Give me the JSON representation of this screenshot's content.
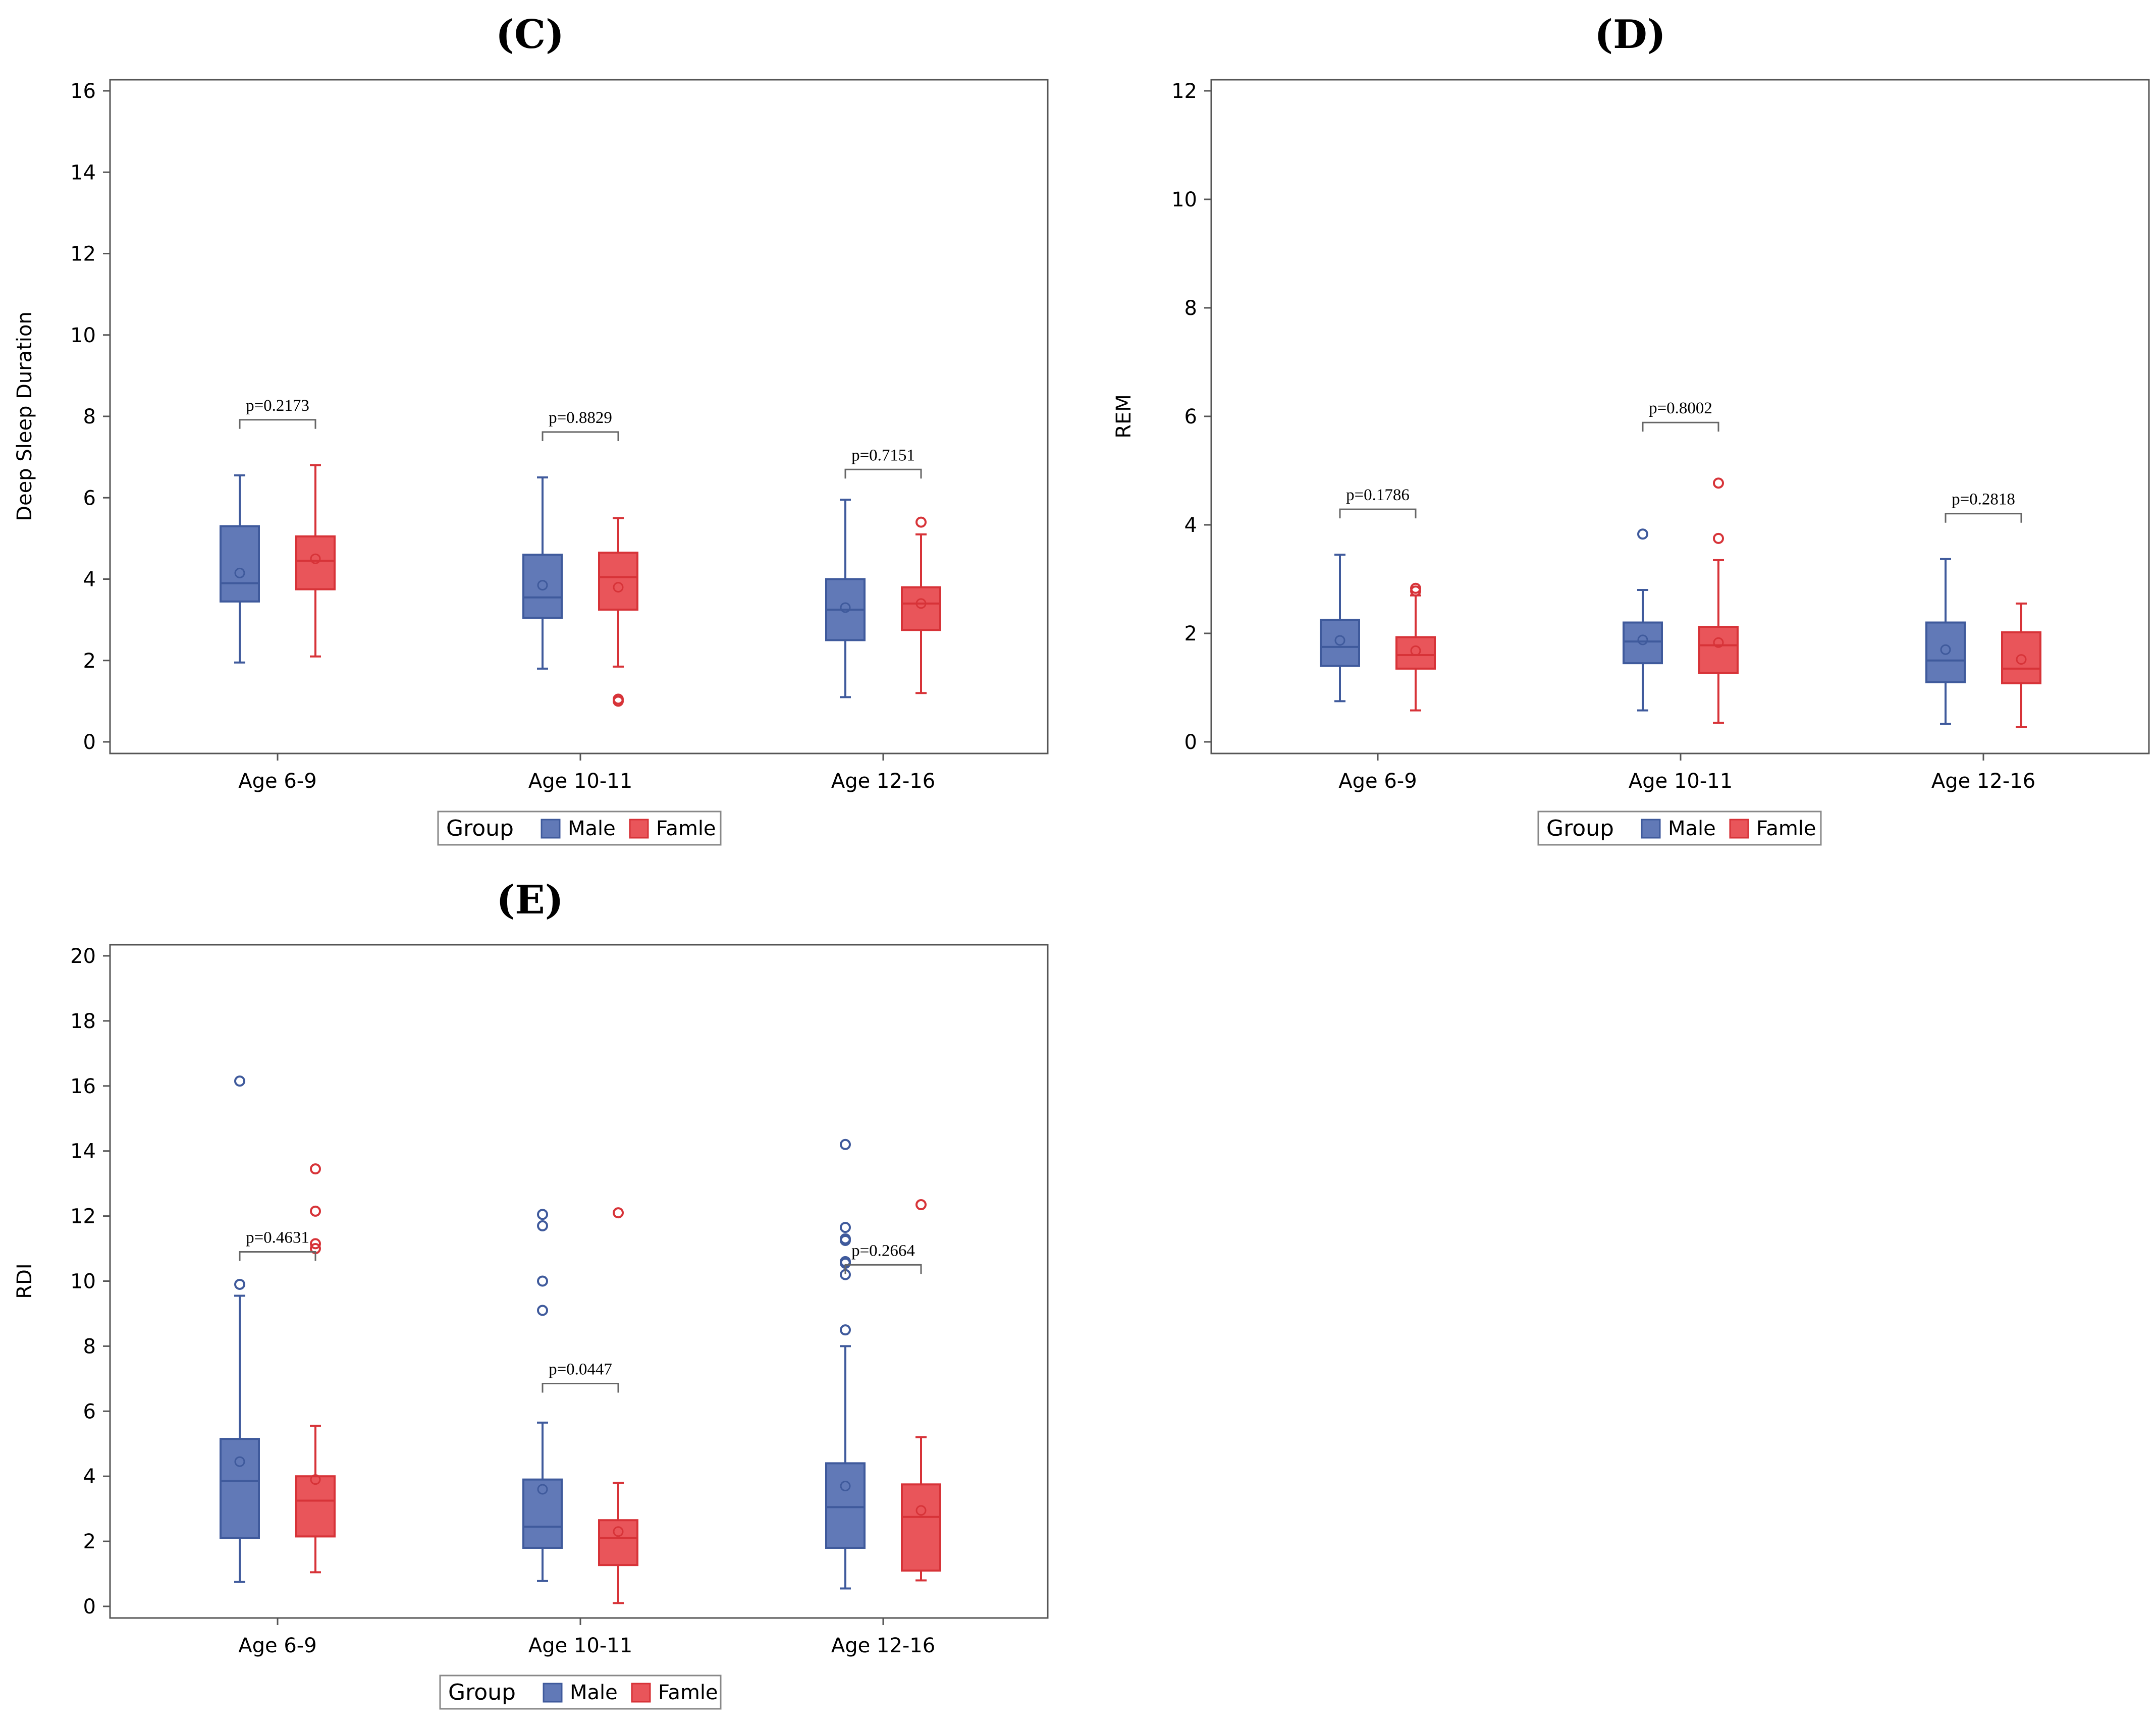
{
  "colors": {
    "male_fill": "#6179b7",
    "male_line": "#3f5a9c",
    "female_fill": "#e9555a",
    "female_line": "#d73338",
    "axis": "#555555",
    "bracket": "#666666"
  },
  "legend": {
    "title": "Group",
    "male": "Male",
    "female": "Famle"
  },
  "chart_data": [
    {
      "panel": "(C)",
      "type": "box",
      "ylabel": "Deep Sleep Duration",
      "ylim": [
        0,
        16
      ],
      "yticks": [
        "0",
        "2",
        "4",
        "6",
        "8",
        "10",
        "12",
        "14",
        "16"
      ],
      "categories": [
        "Age 6-9",
        "Age 10-11",
        "Age 12-16"
      ],
      "groups": [
        {
          "pvalue": "p=0.2173",
          "male": {
            "min": 1.95,
            "q1": 3.45,
            "median": 3.9,
            "q3": 5.3,
            "max": 6.55,
            "mean": 4.15,
            "outliers": []
          },
          "female": {
            "min": 2.1,
            "q1": 3.75,
            "median": 4.45,
            "q3": 5.05,
            "max": 6.8,
            "mean": 4.5,
            "outliers": []
          }
        },
        {
          "pvalue": "p=0.8829",
          "male": {
            "min": 1.8,
            "q1": 3.05,
            "median": 3.55,
            "q3": 4.6,
            "max": 6.5,
            "mean": 3.85,
            "outliers": []
          },
          "female": {
            "min": 1.85,
            "q1": 3.25,
            "median": 4.05,
            "q3": 4.65,
            "max": 5.5,
            "mean": 3.8,
            "outliers": [
              1.0,
              1.05
            ]
          }
        },
        {
          "pvalue": "p=0.7151",
          "male": {
            "min": 1.1,
            "q1": 2.5,
            "median": 3.25,
            "q3": 4.0,
            "max": 5.95,
            "mean": 3.3,
            "outliers": []
          },
          "female": {
            "min": 1.2,
            "q1": 2.75,
            "median": 3.4,
            "q3": 3.8,
            "max": 5.1,
            "mean": 3.4,
            "outliers": [
              5.4
            ]
          }
        }
      ]
    },
    {
      "panel": "(D)",
      "type": "box",
      "ylabel": "REM",
      "ylim": [
        0,
        12
      ],
      "yticks": [
        "0",
        "2",
        "4",
        "6",
        "8",
        "10",
        "12"
      ],
      "categories": [
        "Age 6-9",
        "Age 10-11",
        "Age 12-16"
      ],
      "groups": [
        {
          "pvalue": "p=0.1786",
          "male": {
            "min": 0.75,
            "q1": 1.4,
            "median": 1.75,
            "q3": 2.25,
            "max": 3.45,
            "mean": 1.87,
            "outliers": []
          },
          "female": {
            "min": 0.58,
            "q1": 1.35,
            "median": 1.6,
            "q3": 1.93,
            "max": 2.7,
            "mean": 1.68,
            "outliers": [
              2.78,
              2.83
            ]
          }
        },
        {
          "pvalue": "p=0.8002",
          "male": {
            "min": 0.58,
            "q1": 1.45,
            "median": 1.85,
            "q3": 2.2,
            "max": 2.8,
            "mean": 1.88,
            "outliers": [
              3.83
            ]
          },
          "female": {
            "min": 0.35,
            "q1": 1.27,
            "median": 1.78,
            "q3": 2.12,
            "max": 3.35,
            "mean": 1.83,
            "outliers": [
              3.75,
              4.77
            ]
          }
        },
        {
          "pvalue": "p=0.2818",
          "male": {
            "min": 0.33,
            "q1": 1.1,
            "median": 1.5,
            "q3": 2.2,
            "max": 3.37,
            "mean": 1.7,
            "outliers": []
          },
          "female": {
            "min": 0.27,
            "q1": 1.08,
            "median": 1.35,
            "q3": 2.02,
            "max": 2.55,
            "mean": 1.52,
            "outliers": []
          }
        }
      ]
    },
    {
      "panel": "(E)",
      "type": "box",
      "ylabel": "RDI",
      "ylim": [
        0,
        20
      ],
      "yticks": [
        "0",
        "2",
        "4",
        "6",
        "8",
        "10",
        "12",
        "14",
        "16",
        "18",
        "20"
      ],
      "categories": [
        "Age 6-9",
        "Age 10-11",
        "Age 12-16"
      ],
      "groups": [
        {
          "pvalue": "p=0.4631",
          "male": {
            "min": 0.75,
            "q1": 2.1,
            "median": 3.85,
            "q3": 5.15,
            "max": 9.55,
            "mean": 4.45,
            "outliers": [
              9.9,
              16.15
            ]
          },
          "female": {
            "min": 1.05,
            "q1": 2.15,
            "median": 3.25,
            "q3": 4.0,
            "max": 5.55,
            "mean": 3.9,
            "outliers": [
              11.0,
              11.15,
              12.15,
              13.45
            ]
          }
        },
        {
          "pvalue": "p=0.0447",
          "male": {
            "min": 0.78,
            "q1": 1.8,
            "median": 2.45,
            "q3": 3.9,
            "max": 5.65,
            "mean": 3.6,
            "outliers": [
              9.1,
              10.0,
              11.7,
              12.05
            ]
          },
          "female": {
            "min": 0.1,
            "q1": 1.27,
            "median": 2.1,
            "q3": 2.65,
            "max": 3.8,
            "mean": 2.3,
            "outliers": [
              12.1
            ]
          }
        },
        {
          "pvalue": "p=0.2664",
          "male": {
            "min": 0.55,
            "q1": 1.8,
            "median": 3.05,
            "q3": 4.4,
            "max": 8.0,
            "mean": 3.7,
            "outliers": [
              8.5,
              10.2,
              10.55,
              10.6,
              11.25,
              11.3,
              11.65,
              14.2
            ]
          },
          "female": {
            "min": 0.8,
            "q1": 1.1,
            "median": 2.75,
            "q3": 3.75,
            "max": 5.2,
            "mean": 2.95,
            "outliers": [
              12.35
            ]
          }
        }
      ]
    }
  ]
}
